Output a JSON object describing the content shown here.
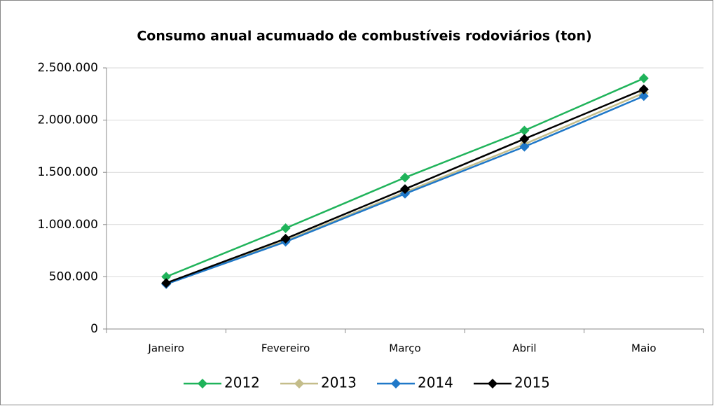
{
  "chart_data": {
    "type": "line",
    "title": "Consumo anual acumuado de combustíveis rodoviários (ton)",
    "categories": [
      "Janeiro",
      "Fevereiro",
      "Março",
      "Abril",
      "Maio"
    ],
    "series": [
      {
        "name": "2012",
        "color": "#1fb35a",
        "values": [
          500000,
          965000,
          1450000,
          1900000,
          2400000
        ]
      },
      {
        "name": "2013",
        "color": "#c4bd8a",
        "values": [
          435000,
          845000,
          1310000,
          1770000,
          2260000
        ]
      },
      {
        "name": "2014",
        "color": "#1f78c8",
        "values": [
          430000,
          835000,
          1295000,
          1745000,
          2230000
        ]
      },
      {
        "name": "2015",
        "color": "#000000",
        "values": [
          440000,
          865000,
          1340000,
          1820000,
          2295000
        ]
      }
    ],
    "ylim": [
      0,
      2500000
    ],
    "yticks": [
      0,
      {
        "value": 500000,
        "label": "500.000"
      },
      {
        "value": 1000000,
        "label": "1.000.000"
      },
      {
        "value": 1500000,
        "label": "1.500.000"
      },
      {
        "value": 2000000,
        "label": "2.000.000"
      },
      {
        "value": 2500000,
        "label": "2.500.000"
      }
    ],
    "grid": true,
    "legend": "bottom"
  }
}
